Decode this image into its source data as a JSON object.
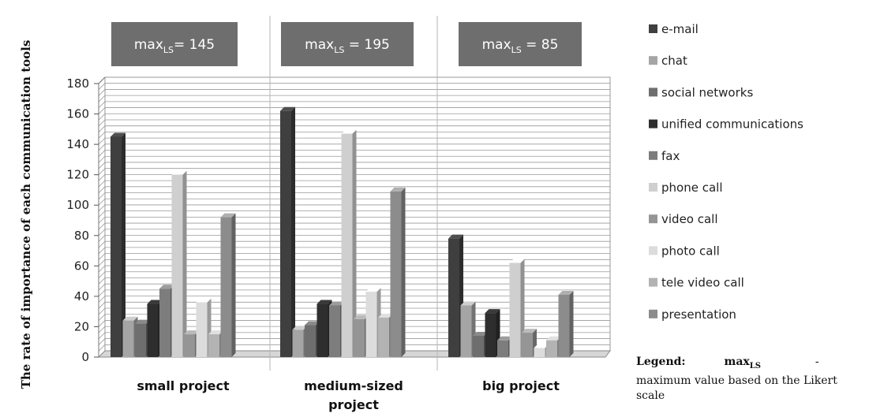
{
  "chart_data": {
    "type": "bar",
    "ylabel": "The rate of importance of each communication tools",
    "ylim": [
      0,
      180
    ],
    "yticks": [
      "0",
      "20",
      "40",
      "60",
      "80",
      "100",
      "120",
      "140",
      "160",
      "180"
    ],
    "categories": [
      "small project",
      "medium-sized project",
      "big project"
    ],
    "category_lines": [
      [
        "small project"
      ],
      [
        "medium-sized",
        "project"
      ],
      [
        "big project"
      ]
    ],
    "max_labels": [
      {
        "prefix": "max",
        "sub": "LS",
        "text": "= 145"
      },
      {
        "prefix": "max",
        "sub": "LS",
        "text": " = 195"
      },
      {
        "prefix": "max",
        "sub": "LS",
        "text": " =  85"
      }
    ],
    "series": [
      {
        "name": "e-mail",
        "color": "#3f3f3f",
        "values": [
          145,
          162,
          78
        ]
      },
      {
        "name": "chat",
        "color": "#a5a5a5",
        "values": [
          24,
          18,
          34
        ]
      },
      {
        "name": "social networks",
        "color": "#6e6e6e",
        "values": [
          22,
          21,
          14
        ]
      },
      {
        "name": "unified communications",
        "color": "#2e2e2e",
        "values": [
          35,
          35,
          29
        ]
      },
      {
        "name": "fax",
        "color": "#7d7d7d",
        "values": [
          45,
          34,
          11
        ]
      },
      {
        "name": "phone call",
        "color": "#cfcfcf",
        "values": [
          120,
          147,
          62
        ]
      },
      {
        "name": "video call",
        "color": "#959595",
        "values": [
          15,
          25,
          16
        ]
      },
      {
        "name": "photo call",
        "color": "#dcdcdc",
        "values": [
          36,
          43,
          6
        ]
      },
      {
        "name": "tele video call",
        "color": "#b3b3b3",
        "values": [
          15,
          26,
          11
        ]
      },
      {
        "name": "presentation",
        "color": "#8c8c8c",
        "values": [
          92,
          109,
          41
        ]
      }
    ],
    "legend_position": "right",
    "grid": true
  },
  "legend_note": {
    "heading": "Legend:",
    "symbol": "max",
    "symbol_sub": "LS",
    "dash": "-",
    "text": "maximum value based on the Likert scale"
  }
}
